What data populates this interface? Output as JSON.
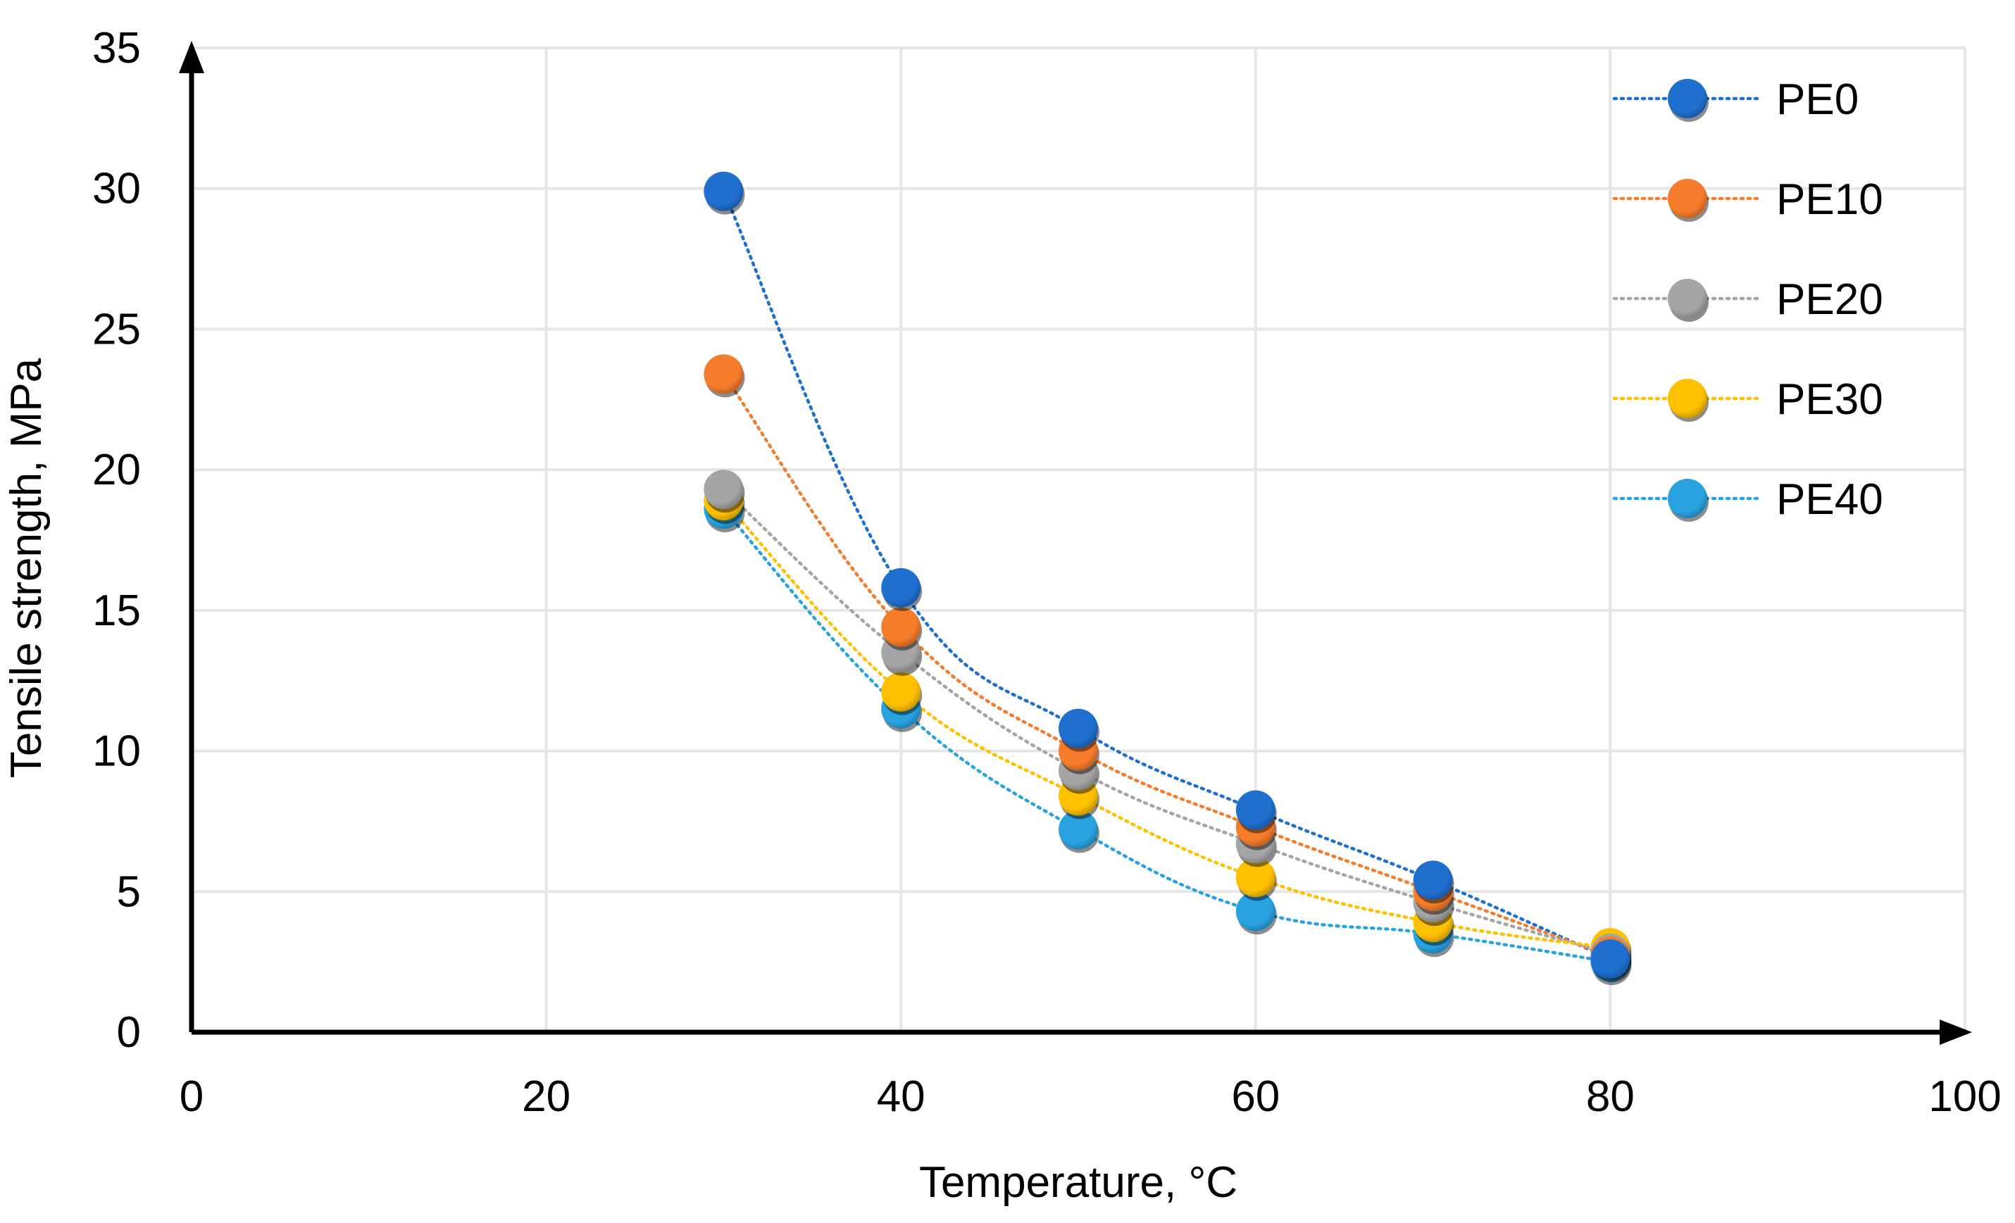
{
  "chart_data": {
    "type": "scatter",
    "title": "",
    "xlabel": "Temperature, °C",
    "ylabel": "Tensile strength, MPa",
    "xlim": [
      0,
      100
    ],
    "ylim": [
      0,
      35
    ],
    "xticks": [
      0,
      20,
      40,
      60,
      80,
      100
    ],
    "yticks": [
      0,
      5,
      10,
      15,
      20,
      25,
      30,
      35
    ],
    "grid": true,
    "legend_position": "top-right",
    "line_style": "dotted smooth",
    "x": [
      30,
      40,
      50,
      60,
      70,
      80
    ],
    "series": [
      {
        "name": "PE0",
        "color": "#1F6FCF",
        "values": [
          29.9,
          15.8,
          10.8,
          7.9,
          5.4,
          2.6
        ]
      },
      {
        "name": "PE10",
        "color": "#F57C2A",
        "values": [
          23.4,
          14.4,
          10.0,
          7.3,
          5.0,
          2.7
        ]
      },
      {
        "name": "PE20",
        "color": "#A5A5A5",
        "values": [
          19.3,
          13.5,
          9.3,
          6.7,
          4.6,
          2.8
        ]
      },
      {
        "name": "PE30",
        "color": "#FFC000",
        "values": [
          18.9,
          12.1,
          8.4,
          5.5,
          3.9,
          3.0
        ]
      },
      {
        "name": "PE40",
        "color": "#29A3E0",
        "values": [
          18.6,
          11.5,
          7.2,
          4.3,
          3.5,
          2.5
        ]
      }
    ]
  }
}
